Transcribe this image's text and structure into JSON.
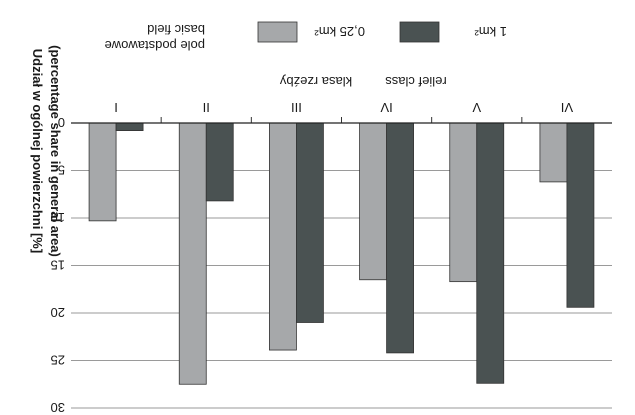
{
  "chart_data": {
    "type": "bar",
    "orientation": "vertical-inverted",
    "categories": [
      "I",
      "II",
      "III",
      "IV",
      "V",
      "VI"
    ],
    "series": [
      {
        "name": "0,25 km²",
        "color": "#a6a8aa",
        "values": [
          10.3,
          27.5,
          23.9,
          16.5,
          16.7,
          6.2
        ]
      },
      {
        "name": "1 km²",
        "color": "#4a5252",
        "values": [
          0.8,
          8.2,
          21.0,
          24.2,
          27.4,
          19.4
        ]
      }
    ],
    "ylim": [
      0,
      30
    ],
    "yticks": [
      0,
      5,
      10,
      15,
      20,
      25,
      30
    ],
    "ylabel_pl": "Udział w ogólnej powierzchni [%]",
    "ylabel_en": "(percentage share in general area)",
    "xlabel_pl": "klasa rzeźby",
    "xlabel_en": "relief class",
    "legend_title_en": "basic field",
    "legend_title_pl": "pole podstawowe",
    "legend_placement": "top",
    "grid": true
  }
}
